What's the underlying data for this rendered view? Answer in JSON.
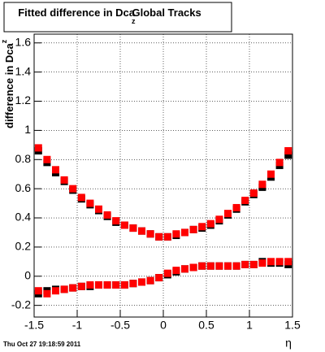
{
  "chart_data": {
    "type": "scatter",
    "title": "Fitted difference in Dca",
    "title_subscript": "z",
    "title_suffix": "Global Tracks",
    "y_label": "difference in Dca",
    "y_label_subscript": "z",
    "x_label": "η",
    "footer": "Thu Oct 27 19:18:59 2011",
    "x": [
      -1.45,
      -1.35,
      -1.25,
      -1.15,
      -1.05,
      -0.95,
      -0.85,
      -0.75,
      -0.65,
      -0.55,
      -0.45,
      -0.35,
      -0.25,
      -0.15,
      -0.05,
      0.05,
      0.15,
      0.25,
      0.35,
      0.45,
      0.55,
      0.65,
      0.75,
      0.85,
      0.95,
      1.05,
      1.15,
      1.25,
      1.35,
      1.45
    ],
    "series": [
      {
        "color": "#000000",
        "values": [
          0.86,
          0.78,
          0.71,
          0.65,
          0.59,
          0.53,
          0.49,
          0.45,
          0.41,
          0.37,
          0.35,
          0.33,
          0.31,
          0.29,
          0.27,
          0.27,
          0.28,
          0.3,
          0.32,
          0.33,
          0.35,
          0.38,
          0.42,
          0.46,
          0.51,
          0.56,
          0.61,
          0.68,
          0.76,
          0.83
        ]
      },
      {
        "color": "#000000",
        "values": [
          -0.12,
          -0.1,
          -0.09,
          -0.09,
          -0.08,
          -0.07,
          -0.07,
          -0.06,
          -0.06,
          -0.06,
          -0.06,
          -0.05,
          -0.04,
          -0.03,
          -0.01,
          0.01,
          0.03,
          0.05,
          0.06,
          0.07,
          0.07,
          0.07,
          0.07,
          0.07,
          0.08,
          0.08,
          0.1,
          0.09,
          0.09,
          0.08
        ]
      },
      {
        "color": "#ff0000",
        "values": [
          0.88,
          0.8,
          0.73,
          0.66,
          0.6,
          0.54,
          0.5,
          0.46,
          0.42,
          0.38,
          0.35,
          0.33,
          0.31,
          0.29,
          0.27,
          0.27,
          0.29,
          0.3,
          0.32,
          0.34,
          0.36,
          0.39,
          0.43,
          0.47,
          0.52,
          0.57,
          0.63,
          0.7,
          0.78,
          0.86
        ]
      },
      {
        "color": "#ff0000",
        "values": [
          -0.1,
          -0.12,
          -0.1,
          -0.09,
          -0.08,
          -0.07,
          -0.06,
          -0.06,
          -0.06,
          -0.06,
          -0.06,
          -0.05,
          -0.04,
          -0.03,
          -0.01,
          0.02,
          0.04,
          0.05,
          0.06,
          0.07,
          0.07,
          0.07,
          0.07,
          0.07,
          0.08,
          0.08,
          0.09,
          0.1,
          0.1,
          0.1
        ]
      }
    ],
    "xlim": [
      -1.5,
      1.5
    ],
    "ylim": [
      -0.28,
      1.66
    ],
    "xticks": [
      -1.5,
      -1,
      -0.5,
      0,
      0.5,
      1,
      1.5
    ],
    "yticks": [
      -0.2,
      0,
      0.2,
      0.4,
      0.6,
      0.8,
      1,
      1.2,
      1.4,
      1.6
    ],
    "grid": true
  }
}
